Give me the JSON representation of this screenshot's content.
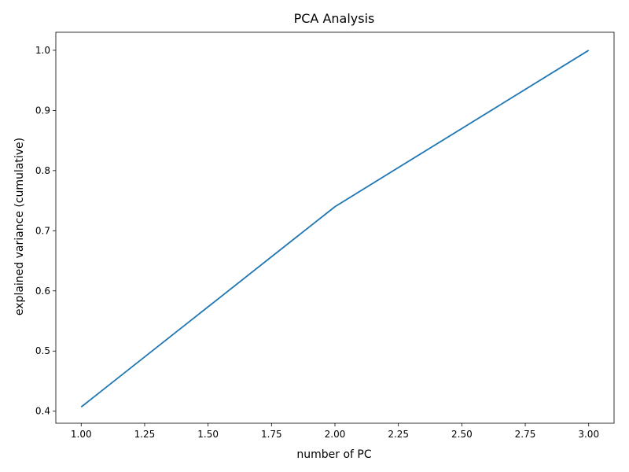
{
  "chart_data": {
    "type": "line",
    "title": "PCA Analysis",
    "xlabel": "number of PC",
    "ylabel": "explained variance (cumulative)",
    "x": [
      1,
      2,
      3
    ],
    "series": [
      {
        "values": [
          0.407,
          0.74,
          1.0
        ],
        "color": "#1f77b4"
      }
    ],
    "xlim": [
      0.9,
      3.1
    ],
    "ylim": [
      0.38,
      1.03
    ],
    "xticks": [
      1.0,
      1.25,
      1.5,
      1.75,
      2.0,
      2.25,
      2.5,
      2.75,
      3.0
    ],
    "xtick_labels": [
      "1.00",
      "1.25",
      "1.50",
      "1.75",
      "2.00",
      "2.25",
      "2.50",
      "2.75",
      "3.00"
    ],
    "yticks": [
      0.4,
      0.5,
      0.6,
      0.7,
      0.8,
      0.9,
      1.0
    ],
    "ytick_labels": [
      "0.4",
      "0.5",
      "0.6",
      "0.7",
      "0.8",
      "0.9",
      "1.0"
    ],
    "grid": false,
    "legend": "none"
  }
}
